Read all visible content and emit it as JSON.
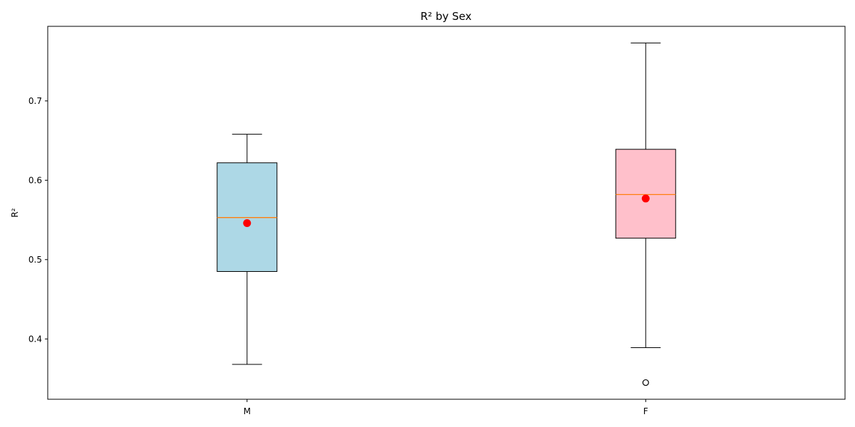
{
  "chart_data": {
    "type": "box",
    "title": "R² by Sex",
    "xlabel": "",
    "ylabel": "R²",
    "ylim": [
      0.324,
      0.794
    ],
    "yticks": [
      0.4,
      0.5,
      0.6,
      0.7
    ],
    "grid": false,
    "categories": [
      "M",
      "F"
    ],
    "boxes": [
      {
        "category": "M",
        "whisker_low": 0.368,
        "q1": 0.485,
        "median": 0.553,
        "q3": 0.622,
        "whisker_high": 0.658,
        "mean": 0.546,
        "outliers": [],
        "fill": "#add8e6"
      },
      {
        "category": "F",
        "whisker_low": 0.389,
        "q1": 0.527,
        "median": 0.582,
        "q3": 0.639,
        "whisker_high": 0.773,
        "mean": 0.577,
        "outliers": [
          0.345
        ],
        "fill": "#ffc0cb"
      }
    ],
    "median_color": "#ff7f0e",
    "mean_color": "#ff0000"
  }
}
